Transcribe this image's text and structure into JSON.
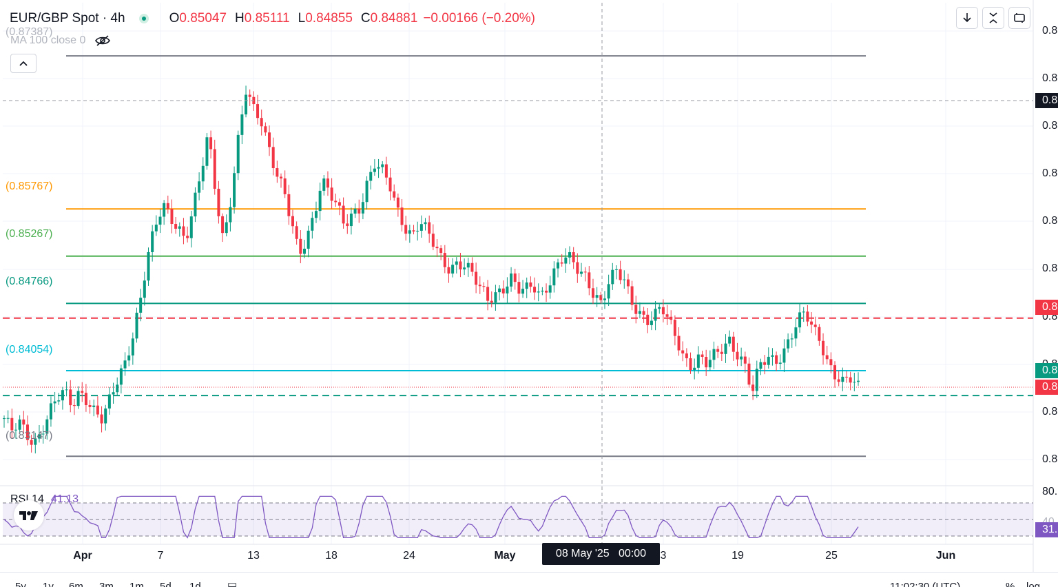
{
  "header": {
    "title": "EUR/GBP Spot · 4h",
    "o_label": "O",
    "o_value": "0.85047",
    "h_label": "H",
    "h_value": "0.85111",
    "l_label": "L",
    "l_value": "0.84855",
    "c_label": "C",
    "c_value": "0.84881",
    "change": "−0.00166 (−0.20%)"
  },
  "indicators": {
    "ma_label": "MA 100 close 0",
    "ghost_top_value": "(0.87387)",
    "rsi_label": "RSI 14",
    "rsi_value": "41.13"
  },
  "levels": [
    {
      "label": "(0.85767)",
      "color": "#ff9800"
    },
    {
      "label": "(0.85267)",
      "color": "#4caf50"
    },
    {
      "label": "(0.84766)",
      "color": "#089981"
    },
    {
      "label": "(0.84054)",
      "color": "#00bcd4"
    },
    {
      "label": "(0.83147)",
      "color": "#787b86"
    }
  ],
  "price_axis": {
    "ticks": [
      "0.8",
      "0.8",
      "0.8",
      "0.8",
      "0.8",
      "0.8",
      "0.8",
      "0.8",
      "0.8",
      "0.8"
    ],
    "tags": [
      "0.8",
      "0.8",
      "0.8",
      "0.8"
    ],
    "rsi_ticks": [
      "80.",
      "40.",
      "31."
    ]
  },
  "x_axis": {
    "ticks": [
      "Apr",
      "7",
      "13",
      "18",
      "24",
      "May",
      "3",
      "19",
      "25",
      "Jun"
    ],
    "crosshair_label": "08 May '25   00:00"
  },
  "toolbar": {
    "download_icon": "download-icon",
    "fullscreen_icon": "fullscreen-icon",
    "camera_icon": "snapshot-icon"
  },
  "bottom_bar": {
    "items": [
      "5y",
      "1y",
      "6m",
      "3m",
      "1m",
      "5d",
      "1d"
    ],
    "time": "11:02:30 (UTC)",
    "pct": "%",
    "log": "log"
  },
  "colors": {
    "up": "#089981",
    "down": "#f23645",
    "rsi": "#7e57c2",
    "resistance_dashed": "#f23645",
    "support_dashed": "#089981"
  },
  "chart_data": {
    "type": "candlestick",
    "title": "EUR/GBP Spot · 4h",
    "xlabel": "",
    "ylabel": "",
    "x_ticks": [
      "Apr",
      "7",
      "13",
      "18",
      "24",
      "May",
      "3",
      "19",
      "25",
      "Jun"
    ],
    "ylim": [
      0.8285,
      0.8795
    ],
    "horizontal_levels": [
      {
        "label": "(0.87387)",
        "value": 0.87387,
        "style": "solid",
        "color": "#787b86"
      },
      {
        "label": "(0.85767)",
        "value": 0.85767,
        "style": "solid",
        "color": "#ff9800"
      },
      {
        "label": "(0.85267)",
        "value": 0.85267,
        "style": "solid",
        "color": "#4caf50"
      },
      {
        "label": "(0.84766)",
        "value": 0.84766,
        "style": "solid",
        "color": "#089981"
      },
      {
        "label": "(0.84054)",
        "value": 0.84054,
        "style": "solid",
        "color": "#00bcd4"
      },
      {
        "label": "(0.83147)",
        "value": 0.83147,
        "style": "solid",
        "color": "#787b86"
      },
      {
        "value": 0.8461,
        "style": "dashed",
        "color": "#f23645"
      },
      {
        "value": 0.8379,
        "style": "dashed",
        "color": "#089981"
      }
    ],
    "close_path": [
      0.8355,
      0.834,
      0.8348,
      0.8337,
      0.833,
      0.8345,
      0.8362,
      0.8375,
      0.838,
      0.8368,
      0.8385,
      0.8377,
      0.8362,
      0.8352,
      0.8372,
      0.8395,
      0.8415,
      0.8445,
      0.848,
      0.8525,
      0.8555,
      0.858,
      0.857,
      0.856,
      0.8545,
      0.8575,
      0.861,
      0.8655,
      0.8595,
      0.8545,
      0.859,
      0.865,
      0.87,
      0.868,
      0.8672,
      0.8645,
      0.8618,
      0.8595,
      0.856,
      0.8525,
      0.8545,
      0.8573,
      0.861,
      0.8595,
      0.8578,
      0.8557,
      0.857,
      0.858,
      0.8605,
      0.8625,
      0.8615,
      0.86,
      0.8575,
      0.856,
      0.855,
      0.8565,
      0.855,
      0.8535,
      0.852,
      0.8515,
      0.8522,
      0.8518,
      0.8505,
      0.849,
      0.848,
      0.8488,
      0.8495,
      0.8505,
      0.849,
      0.8488,
      0.8495,
      0.8485,
      0.85,
      0.8515,
      0.8525,
      0.852,
      0.851,
      0.8505,
      0.849,
      0.8478,
      0.8498,
      0.8508,
      0.85,
      0.848,
      0.847,
      0.846,
      0.8462,
      0.847,
      0.8455,
      0.844,
      0.842,
      0.8412,
      0.8418,
      0.841,
      0.842,
      0.843,
      0.844,
      0.8425,
      0.841,
      0.838,
      0.841,
      0.842,
      0.8418,
      0.8425,
      0.844,
      0.8455,
      0.8465,
      0.845,
      0.844,
      0.8415,
      0.84,
      0.839,
      0.8395,
      0.8388
    ],
    "candle_count": 220,
    "rsi": {
      "period": 14,
      "last_value": 41.13,
      "levels": [
        70,
        50,
        30
      ],
      "y_ticks": [
        "80.",
        "40.",
        "31."
      ]
    }
  }
}
